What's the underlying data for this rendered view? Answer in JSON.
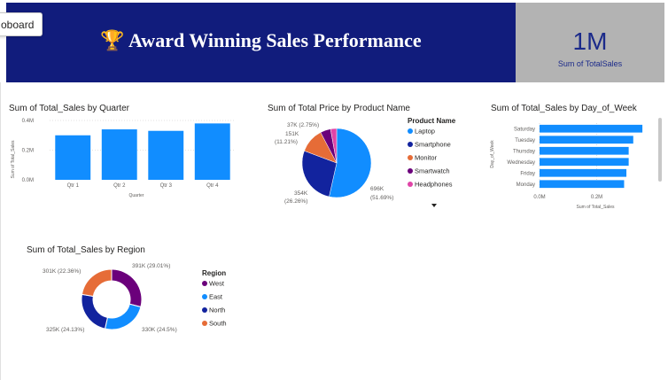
{
  "header": {
    "title": "Award Winning Sales Performance",
    "trophy_icon": "🏆"
  },
  "kpi": {
    "value": "1M",
    "label": "Sum of TotalSales"
  },
  "tooltip": {
    "text": "oboard"
  },
  "colors": {
    "header_bg": "#111c7c",
    "kpi_bg": "#b3b3b3",
    "accent": "#118dff"
  },
  "charts": {
    "quarter": {
      "title": "Sum of Total_Sales by Quarter",
      "ylabel": "Sum of Total_Sales",
      "xlabel": "Quarter",
      "yticks": [
        "0.4M",
        "0.2M",
        "0.0M"
      ]
    },
    "product": {
      "title": "Sum of Total Price by Product Name",
      "legend_title": "Product Name",
      "labels": [
        "37K (2.75%)",
        "151K",
        "(11.21%)",
        "354K",
        "(26.26%)",
        "696K",
        "(51.69%)"
      ]
    },
    "day": {
      "title": "Sum of Total_Sales by Day_of_Week",
      "ylabel": "Day_of_Week",
      "xlabel": "Sum of Total_Sales",
      "xticks": [
        "0.0M",
        "0.2M"
      ]
    },
    "region": {
      "title": "Sum of Total_Sales by Region",
      "legend_title": "Region",
      "labels": [
        "391K (29.01%)",
        "330K (24.5%)",
        "325K (24.13%)",
        "301K (22.36%)"
      ]
    }
  },
  "chart_data": [
    {
      "type": "bar",
      "title": "Sum of Total_Sales by Quarter",
      "categories": [
        "Qtr 1",
        "Qtr 2",
        "Qtr 3",
        "Qtr 4"
      ],
      "values": [
        300000,
        340000,
        330000,
        380000
      ],
      "xlabel": "Quarter",
      "ylabel": "Sum of Total_Sales",
      "ylim": [
        0,
        400000
      ],
      "grid": true
    },
    {
      "type": "pie",
      "title": "Sum of Total Price by Product Name",
      "categories": [
        "Laptop",
        "Smartphone",
        "Monitor",
        "Smartwatch",
        "Headphones"
      ],
      "values": [
        696000,
        354000,
        151000,
        63000,
        37000
      ],
      "colors": [
        "#118dff",
        "#12239e",
        "#e66c37",
        "#6b007b",
        "#e044a7"
      ],
      "legend": "right"
    },
    {
      "type": "bar",
      "orientation": "horizontal",
      "title": "Sum of Total_Sales by Day_of_Week",
      "categories": [
        "Saturday",
        "Tuesday",
        "Thursday",
        "Wednesday",
        "Friday",
        "Monday"
      ],
      "values": [
        225000,
        205000,
        195000,
        195000,
        190000,
        185000
      ],
      "xlabel": "Sum of Total_Sales",
      "ylabel": "Day_of_Week",
      "xlim": [
        0,
        250000
      ],
      "grid": true
    },
    {
      "type": "pie",
      "subtype": "donut",
      "title": "Sum of Total_Sales by Region",
      "categories": [
        "West",
        "East",
        "North",
        "South"
      ],
      "values": [
        391000,
        330000,
        325000,
        301000
      ],
      "colors": [
        "#6b007b",
        "#118dff",
        "#12239e",
        "#e66c37"
      ],
      "legend": "right"
    }
  ]
}
